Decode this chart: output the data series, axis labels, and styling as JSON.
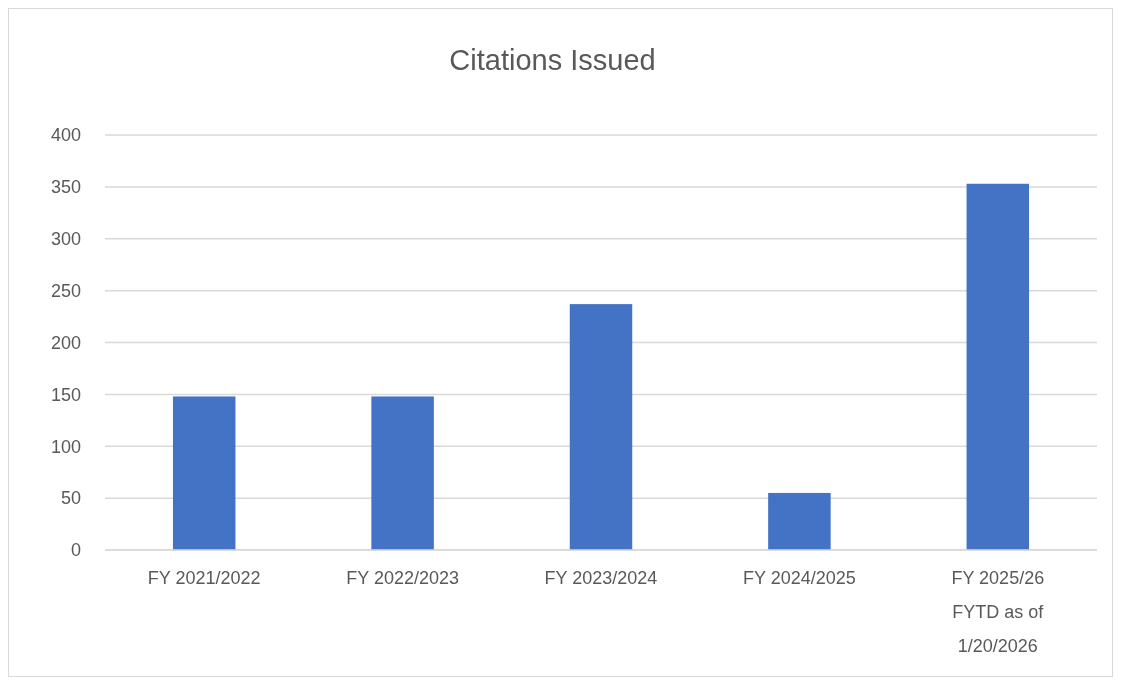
{
  "chart_data": {
    "type": "bar",
    "title": "Citations Issued",
    "categories": [
      "FY 2021/2022",
      "FY 2022/2023",
      "FY 2023/2024",
      "FY 2024/2025",
      "FY 2025/26\nFYTD as of\n1/20/2026"
    ],
    "values": [
      148,
      148,
      237,
      55,
      353
    ],
    "color": "#4472c4",
    "ylim": [
      0,
      400
    ],
    "yticks": [
      0,
      50,
      100,
      150,
      200,
      250,
      300,
      350,
      400
    ],
    "grid": "y"
  }
}
